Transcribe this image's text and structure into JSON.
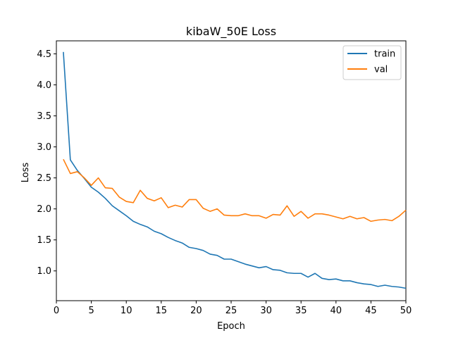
{
  "chart_data": {
    "type": "line",
    "title": "kibaW_50E Loss",
    "xlabel": "Epoch",
    "ylabel": "Loss",
    "xlim": [
      0,
      50
    ],
    "ylim": [
      0.52,
      4.71
    ],
    "xticks": [
      "0",
      "5",
      "10",
      "15",
      "20",
      "25",
      "30",
      "35",
      "40",
      "45",
      "50"
    ],
    "yticks": [
      "1.0",
      "1.5",
      "2.0",
      "2.5",
      "3.0",
      "3.5",
      "4.0",
      "4.5"
    ],
    "legend_position": "top-right",
    "grid": false,
    "x": [
      1,
      2,
      3,
      4,
      5,
      6,
      7,
      8,
      9,
      10,
      11,
      12,
      13,
      14,
      15,
      16,
      17,
      18,
      19,
      20,
      21,
      22,
      23,
      24,
      25,
      26,
      27,
      28,
      29,
      30,
      31,
      32,
      33,
      34,
      35,
      36,
      37,
      38,
      39,
      40,
      41,
      42,
      43,
      44,
      45,
      46,
      47,
      48,
      49,
      50
    ],
    "series": [
      {
        "name": "train",
        "color": "#1f77b4",
        "values": [
          4.53,
          2.79,
          2.62,
          2.49,
          2.35,
          2.27,
          2.17,
          2.05,
          1.97,
          1.89,
          1.8,
          1.75,
          1.71,
          1.64,
          1.6,
          1.54,
          1.49,
          1.45,
          1.38,
          1.36,
          1.33,
          1.27,
          1.25,
          1.19,
          1.19,
          1.15,
          1.11,
          1.08,
          1.05,
          1.07,
          1.02,
          1.01,
          0.97,
          0.96,
          0.96,
          0.9,
          0.96,
          0.88,
          0.86,
          0.87,
          0.84,
          0.84,
          0.81,
          0.79,
          0.78,
          0.75,
          0.77,
          0.75,
          0.74,
          0.72
        ]
      },
      {
        "name": "val",
        "color": "#ff7f0e",
        "values": [
          2.8,
          2.57,
          2.6,
          2.5,
          2.38,
          2.5,
          2.34,
          2.33,
          2.19,
          2.12,
          2.1,
          2.3,
          2.17,
          2.13,
          2.18,
          2.02,
          2.06,
          2.03,
          2.15,
          2.15,
          2.01,
          1.96,
          2.0,
          1.9,
          1.89,
          1.89,
          1.92,
          1.89,
          1.89,
          1.85,
          1.91,
          1.9,
          2.05,
          1.88,
          1.96,
          1.85,
          1.92,
          1.92,
          1.9,
          1.87,
          1.84,
          1.88,
          1.84,
          1.86,
          1.8,
          1.82,
          1.83,
          1.81,
          1.88,
          1.98
        ]
      }
    ]
  }
}
